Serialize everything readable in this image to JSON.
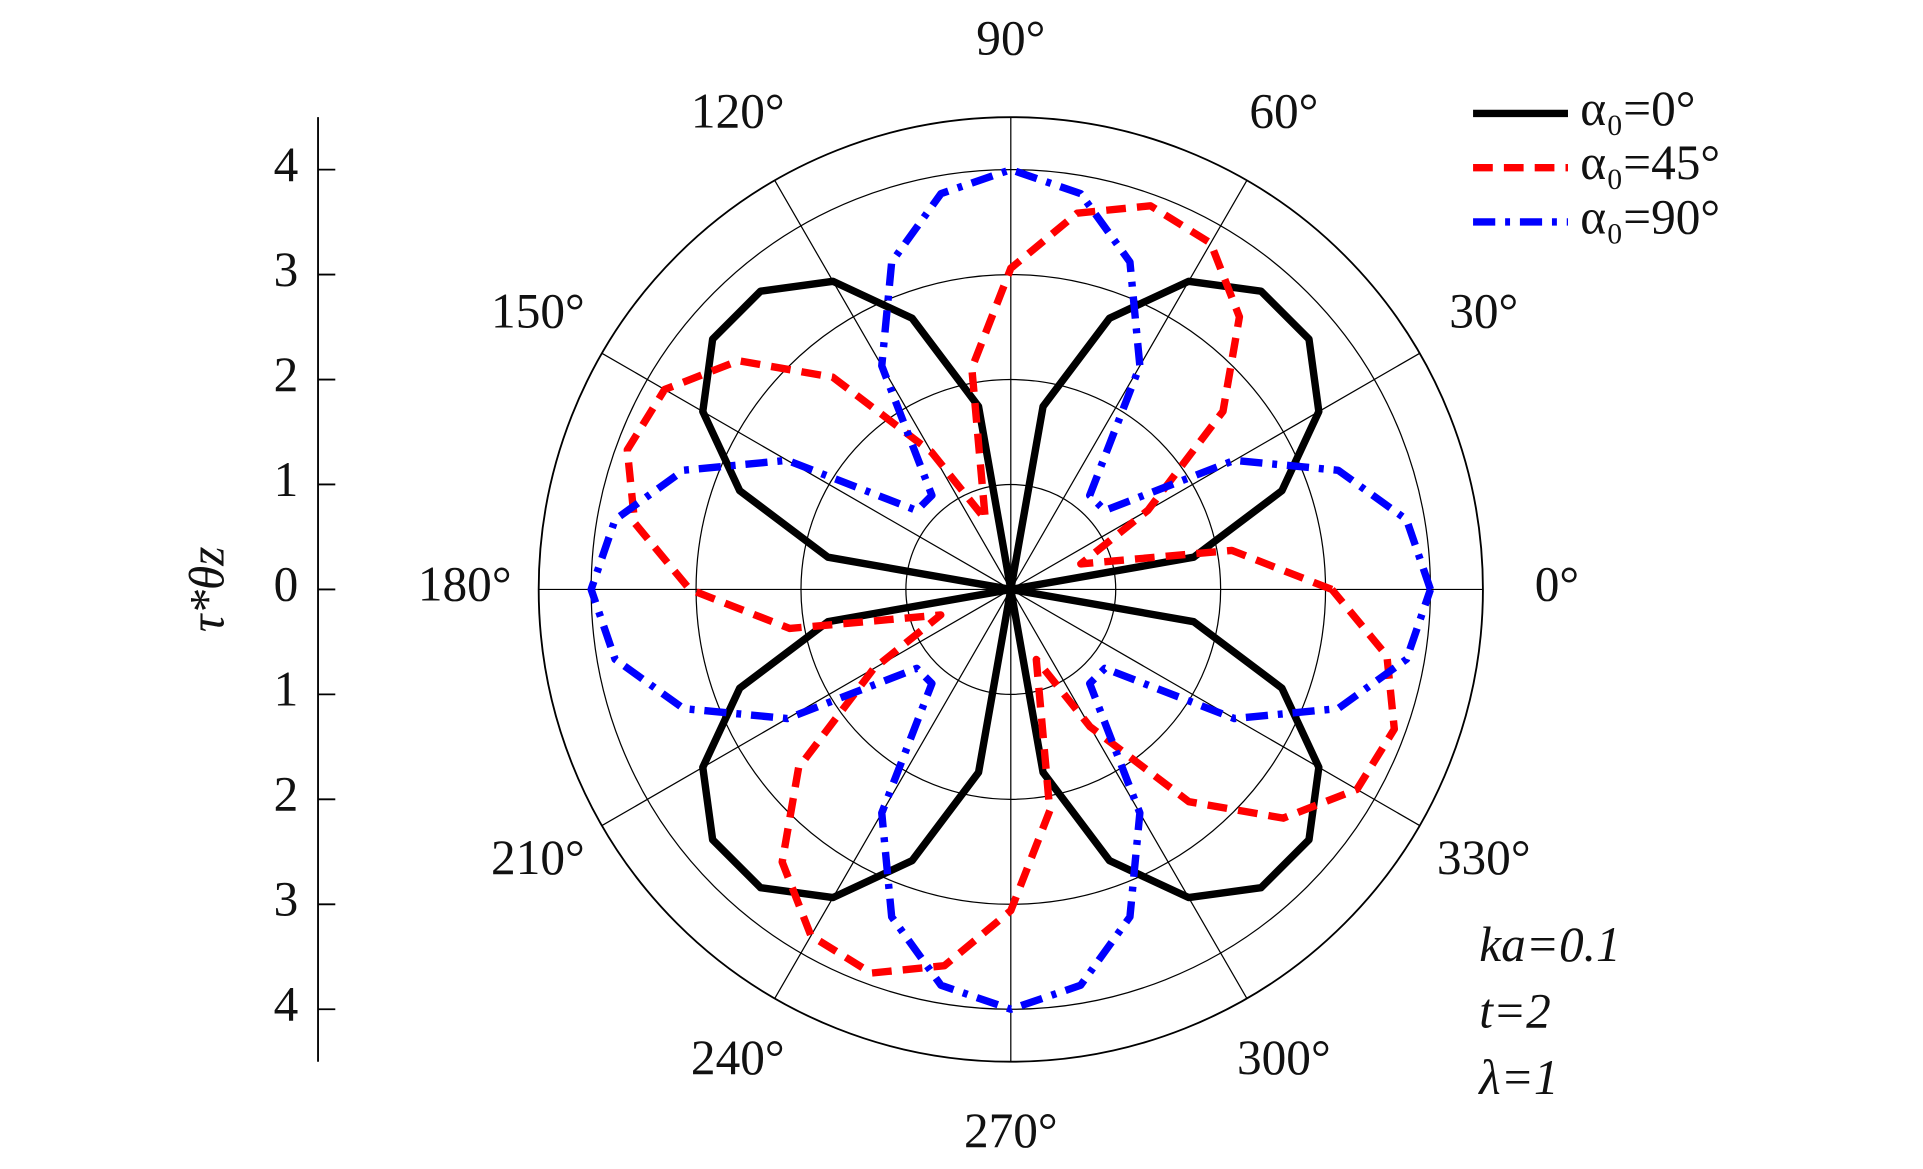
{
  "chart_data": {
    "type": "polar",
    "theta": [
      0,
      10,
      20,
      30,
      40,
      50,
      60,
      70,
      80,
      90,
      100,
      110,
      120,
      130,
      140,
      150,
      160,
      170,
      180,
      190,
      200,
      210,
      220,
      230,
      240,
      250,
      260,
      270,
      280,
      290,
      300,
      310,
      320,
      330,
      340,
      350,
      360
    ],
    "series": [
      {
        "name": "α₀=0°",
        "color": "#000000",
        "dash": "solid",
        "values": [
          0,
          1.77,
          2.75,
          3.39,
          3.71,
          3.71,
          3.39,
          2.75,
          1.77,
          0,
          1.77,
          2.75,
          3.39,
          3.71,
          3.71,
          3.39,
          2.75,
          1.77,
          0,
          1.77,
          2.75,
          3.39,
          3.71,
          3.71,
          3.39,
          2.75,
          1.77,
          0,
          1.77,
          2.75,
          3.39,
          3.71,
          3.71,
          3.39,
          2.75,
          1.77,
          0
        ]
      },
      {
        "name": "α₀=45°",
        "color": "#ff0000",
        "dash": "dashed",
        "values": [
          3.06,
          2.14,
          0.71,
          1.51,
          2.64,
          3.39,
          3.81,
          3.89,
          3.64,
          3.06,
          2.14,
          0.71,
          1.51,
          2.64,
          3.39,
          3.81,
          3.89,
          3.64,
          3.06,
          2.14,
          0.71,
          1.51,
          2.64,
          3.39,
          3.81,
          3.89,
          3.64,
          3.06,
          2.14,
          0.71,
          1.51,
          2.64,
          3.39,
          3.81,
          3.89,
          3.64,
          3.06
        ]
      },
      {
        "name": "α₀=90°",
        "color": "#0000ff",
        "dash": "dashdot",
        "values": [
          4,
          3.83,
          3.32,
          2.46,
          1.17,
          1.17,
          2.46,
          3.32,
          3.83,
          4,
          3.83,
          3.32,
          2.46,
          1.17,
          1.17,
          2.46,
          3.32,
          3.83,
          4,
          3.83,
          3.32,
          2.46,
          1.17,
          1.17,
          2.46,
          3.32,
          3.83,
          4,
          3.83,
          3.32,
          2.46,
          1.17,
          1.17,
          2.46,
          3.32,
          3.83,
          4
        ]
      }
    ],
    "rlim": [
      0,
      4.5
    ],
    "rticks": [
      1,
      2,
      3,
      4
    ],
    "thetaticks": [
      {
        "value": 0,
        "label": "0°"
      },
      {
        "value": 30,
        "label": "30°"
      },
      {
        "value": 60,
        "label": "60°"
      },
      {
        "value": 90,
        "label": "90°"
      },
      {
        "value": 120,
        "label": "120°"
      },
      {
        "value": 150,
        "label": "150°"
      },
      {
        "value": 180,
        "label": "180°"
      },
      {
        "value": 210,
        "label": "210°"
      },
      {
        "value": 240,
        "label": "240°"
      },
      {
        "value": 270,
        "label": "270°"
      },
      {
        "value": 300,
        "label": "300°"
      },
      {
        "value": 330,
        "label": "330°"
      }
    ],
    "y_label": "τ*θz",
    "ylim": [
      -4.5,
      4.5
    ],
    "yticks": [
      {
        "value": 4,
        "label": "4"
      },
      {
        "value": 3,
        "label": "3"
      },
      {
        "value": 2,
        "label": "2"
      },
      {
        "value": 1,
        "label": "1"
      },
      {
        "value": 0,
        "label": "0"
      },
      {
        "value": -1,
        "label": "1"
      },
      {
        "value": -2,
        "label": "2"
      },
      {
        "value": -3,
        "label": "3"
      },
      {
        "value": -4,
        "label": "4"
      }
    ],
    "legend": "upper right",
    "annotations": [
      "ka=0.1",
      "t=2",
      "λ=1"
    ]
  }
}
